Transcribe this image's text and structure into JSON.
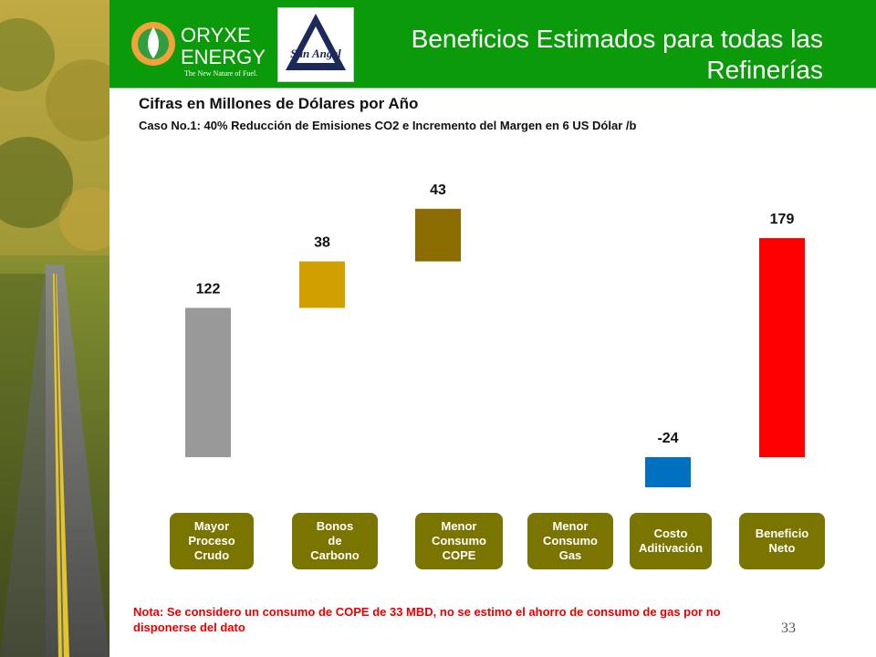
{
  "header": {
    "title": "Beneficios Estimados para todas las Refinerías",
    "logo_oryxe_name": "ORYXE",
    "logo_oryxe_sub": "ENERGY",
    "logo_oryxe_tagline": "The New Nature of Fuel.",
    "logo_sanangel_text": "San Angel"
  },
  "subtitle": "Cifras en Millones de Dólares por Año",
  "case_line": "Caso No.1:  40% Reducción de Emisiones CO2 e Incremento del Margen en 6 US Dólar /b",
  "chart_data": {
    "type": "bar",
    "subtype": "waterfall",
    "title": "",
    "categories": [
      "Mayor Proceso Crudo",
      "Bonos de Carbono",
      "Menor Consumo COPE",
      "Menor Consumo Gas",
      "Costo Aditivación",
      "Beneficio Neto"
    ],
    "category_labels": [
      "Mayor\nProceso\nCrudo",
      "Bonos\nde\nCarbono",
      "Menor\nConsumo\nCOPE",
      "Menor\nConsumo\nGas",
      "Costo\nAditivación",
      "Beneficio\nNeto"
    ],
    "values": [
      122,
      38,
      43,
      null,
      -24,
      179
    ],
    "value_labels": [
      "122",
      "38",
      "43",
      "",
      "-24",
      "179"
    ],
    "colors": [
      "#999999",
      "#d19f00",
      "#8a6c00",
      "#7a7500",
      "#0070c0",
      "#ff0000"
    ],
    "ylim": [
      -30,
      200
    ]
  },
  "category_box_color": "#7a7500",
  "header_color": "#0a9a0a",
  "note": "Nota: Se considero un consumo de COPE de 33 MBD, no se estimo el ahorro de consumo de gas por no disponerse del dato",
  "page_number": "33"
}
